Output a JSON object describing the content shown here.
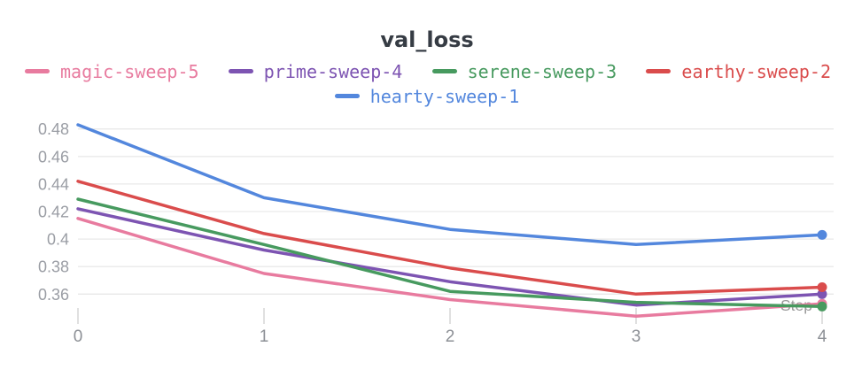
{
  "title": "val_loss",
  "axis": {
    "x_label": "Step"
  },
  "legend": {
    "row1": [
      "magic-sweep-5",
      "prime-sweep-4",
      "serene-sweep-3",
      "earthy-sweep-2"
    ],
    "row2": [
      "hearty-sweep-1"
    ]
  },
  "colors": {
    "magic-sweep-5": "#E87B9F",
    "prime-sweep-4": "#7D54B2",
    "serene-sweep-3": "#479A5F",
    "earthy-sweep-2": "#DA4C4C",
    "hearty-sweep-1": "#5387DD",
    "grid": "#E9E9E9",
    "tick_mark": "#E0E0E0",
    "y_tick_text": "#9A9DA4",
    "x_tick_text": "#8D9096",
    "step_label_text": "#9A9A9A",
    "title_text": "#363C44",
    "background": "#FFFFFF"
  },
  "chart_data": {
    "type": "line",
    "title": "val_loss",
    "xlabel": "Step",
    "ylabel": "",
    "x": [
      0,
      1,
      2,
      3,
      4
    ],
    "x_tick_labels": [
      "0",
      "1",
      "2",
      "3",
      "4"
    ],
    "y_tick_labels": [
      "0.48",
      "0.46",
      "0.44",
      "0.42",
      "0.4",
      "0.38",
      "0.36"
    ],
    "y_tick_values": [
      0.48,
      0.46,
      0.44,
      0.42,
      0.4,
      0.38,
      0.36
    ],
    "ylim": [
      0.335,
      0.49
    ],
    "grid": true,
    "legend_position": "top",
    "end_markers_at_last_point": true,
    "series": [
      {
        "name": "magic-sweep-5",
        "color": "#E87B9F",
        "values": [
          0.415,
          0.375,
          0.356,
          0.344,
          0.353
        ]
      },
      {
        "name": "prime-sweep-4",
        "color": "#7D54B2",
        "values": [
          0.422,
          0.392,
          0.369,
          0.352,
          0.36
        ]
      },
      {
        "name": "serene-sweep-3",
        "color": "#479A5F",
        "values": [
          0.429,
          0.396,
          0.362,
          0.354,
          0.351
        ]
      },
      {
        "name": "earthy-sweep-2",
        "color": "#DA4C4C",
        "values": [
          0.442,
          0.404,
          0.379,
          0.36,
          0.365
        ]
      },
      {
        "name": "hearty-sweep-1",
        "color": "#5387DD",
        "values": [
          0.483,
          0.43,
          0.407,
          0.396,
          0.403
        ]
      }
    ]
  }
}
